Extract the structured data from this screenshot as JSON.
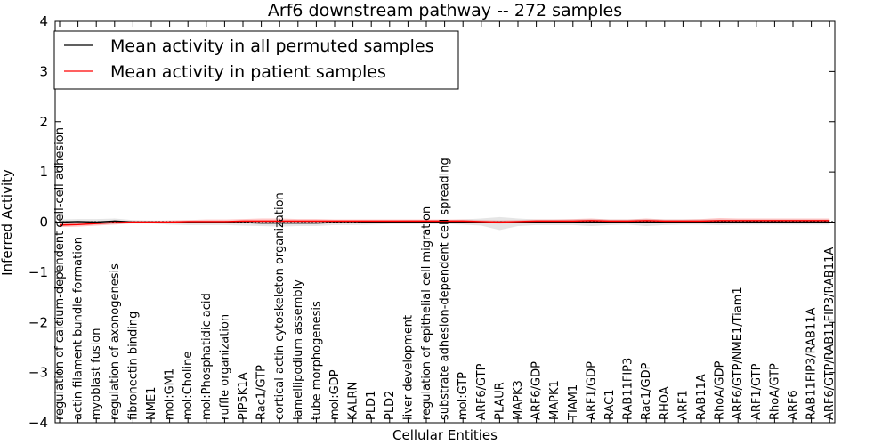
{
  "chart_data": {
    "type": "line",
    "title": "Arf6 downstream pathway -- 272 samples",
    "xlabel": "Cellular Entities",
    "ylabel": "Inferred Activity",
    "ylim": [
      -4,
      4
    ],
    "yticks": [
      "−4",
      "−3",
      "−2",
      "−1",
      "0",
      "1",
      "2",
      "3",
      "4"
    ],
    "legend_position": "top-left",
    "categories": [
      "regulation of calcium-dependent cell-cell adhesion",
      "actin filament bundle formation",
      "myoblast fusion",
      "regulation of axonogenesis",
      "fibronectin binding",
      "NME1",
      "mol:GM1",
      "mol:Choline",
      "mol:Phosphatidic acid",
      "ruffle organization",
      "PIP5K1A",
      "Rac1/GTP",
      "cortical actin cytoskeleton organization",
      "lamellipodium assembly",
      "tube morphogenesis",
      "mol:GDP",
      "KALRN",
      "PLD1",
      "PLD2",
      "liver development",
      "regulation of epithelial cell migration",
      "substrate adhesion-dependent cell spreading",
      "mol:GTP",
      "ARF6/GTP",
      "PLAUR",
      "MAPK3",
      "ARF6/GDP",
      "MAPK1",
      "TIAM1",
      "ARF1/GDP",
      "RAC1",
      "RAB11FIP3",
      "Rac1/GDP",
      "RHOA",
      "ARF1",
      "RAB11A",
      "RhoA/GDP",
      "ARF6/GTP/NME1/Tiam1",
      "ARF1/GTP",
      "RhoA/GTP",
      "ARF6",
      "RAB11FIP3/RAB11A",
      "ARF6/GTP/RAB11FIP3/RAB11A"
    ],
    "series": [
      {
        "name": "Mean activity in all permuted samples",
        "color": "#000000",
        "values": [
          0.0,
          0.01,
          0.0,
          0.02,
          0.0,
          0.0,
          -0.01,
          -0.01,
          -0.01,
          -0.01,
          -0.01,
          -0.02,
          -0.02,
          -0.02,
          -0.02,
          -0.01,
          -0.01,
          0.0,
          0.0,
          0.0,
          0.0,
          0.0,
          0.0,
          0.0,
          0.0,
          0.0,
          0.0,
          0.0,
          0.0,
          0.0,
          0.0,
          0.0,
          0.0,
          0.0,
          0.0,
          0.0,
          0.0,
          0.0,
          0.0,
          0.0,
          0.0,
          0.0,
          0.0
        ],
        "band_low": [
          -0.05,
          -0.05,
          -0.05,
          -0.04,
          -0.03,
          -0.03,
          -0.05,
          -0.06,
          -0.06,
          -0.06,
          -0.07,
          -0.08,
          -0.09,
          -0.08,
          -0.08,
          -0.06,
          -0.06,
          -0.05,
          -0.04,
          -0.04,
          -0.04,
          -0.04,
          -0.05,
          -0.07,
          -0.16,
          -0.08,
          -0.06,
          -0.06,
          -0.06,
          -0.08,
          -0.06,
          -0.05,
          -0.08,
          -0.06,
          -0.05,
          -0.05,
          -0.06,
          -0.05,
          -0.05,
          -0.05,
          -0.05,
          -0.05,
          -0.05
        ],
        "band_high": [
          0.05,
          0.06,
          0.06,
          0.07,
          0.04,
          0.03,
          0.03,
          0.03,
          0.03,
          0.03,
          0.03,
          0.03,
          0.03,
          0.03,
          0.03,
          0.03,
          0.03,
          0.03,
          0.03,
          0.04,
          0.04,
          0.04,
          0.05,
          0.07,
          0.1,
          0.07,
          0.05,
          0.05,
          0.05,
          0.06,
          0.05,
          0.05,
          0.06,
          0.05,
          0.05,
          0.05,
          0.05,
          0.05,
          0.05,
          0.05,
          0.05,
          0.05,
          0.05
        ]
      },
      {
        "name": "Mean activity in patient samples",
        "color": "#ff0000",
        "values": [
          -0.06,
          -0.05,
          -0.03,
          -0.01,
          0.0,
          0.0,
          0.0,
          0.01,
          0.01,
          0.01,
          0.02,
          0.02,
          0.02,
          0.02,
          0.02,
          0.02,
          0.02,
          0.02,
          0.02,
          0.02,
          0.02,
          0.02,
          0.02,
          0.01,
          0.0,
          0.01,
          0.02,
          0.02,
          0.02,
          0.03,
          0.02,
          0.02,
          0.03,
          0.02,
          0.02,
          0.02,
          0.03,
          0.03,
          0.03,
          0.03,
          0.03,
          0.03,
          0.03
        ],
        "band_low": [
          -0.1,
          -0.09,
          -0.07,
          -0.05,
          -0.02,
          -0.02,
          -0.02,
          -0.01,
          -0.01,
          -0.01,
          -0.01,
          -0.01,
          -0.01,
          -0.01,
          -0.01,
          -0.01,
          -0.01,
          -0.01,
          -0.01,
          -0.01,
          -0.01,
          -0.01,
          -0.01,
          -0.02,
          -0.03,
          -0.02,
          -0.01,
          -0.01,
          -0.01,
          0.0,
          -0.01,
          -0.01,
          0.0,
          -0.01,
          -0.01,
          -0.01,
          0.0,
          0.0,
          0.0,
          0.0,
          0.0,
          0.0,
          0.0
        ],
        "band_high": [
          -0.02,
          -0.01,
          0.01,
          0.03,
          0.02,
          0.02,
          0.03,
          0.04,
          0.05,
          0.05,
          0.06,
          0.07,
          0.07,
          0.06,
          0.06,
          0.05,
          0.05,
          0.05,
          0.05,
          0.05,
          0.05,
          0.05,
          0.05,
          0.04,
          0.03,
          0.04,
          0.05,
          0.05,
          0.06,
          0.07,
          0.05,
          0.05,
          0.07,
          0.05,
          0.05,
          0.06,
          0.08,
          0.07,
          0.07,
          0.07,
          0.07,
          0.07,
          0.07
        ]
      }
    ]
  }
}
